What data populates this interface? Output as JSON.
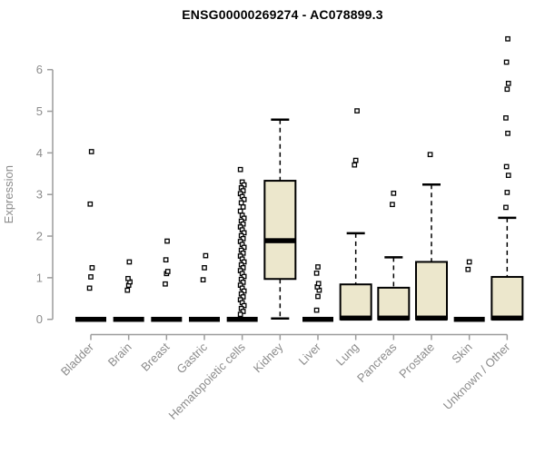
{
  "colors": {
    "box_fill": "#ece7cc",
    "box_stroke": "#000000",
    "median": "#000000",
    "whisker": "#000000",
    "outlier_fill": "#ffffff",
    "outlier_stroke": "#000000",
    "axis_line": "#9c9c9c",
    "axis_text": "#8c8c8c",
    "title_text": "#000000",
    "background": "#ffffff"
  },
  "chart_data": {
    "type": "boxplot",
    "title": "ENSG00000269274 - AC078899.3",
    "xlabel": "",
    "ylabel": "Expression",
    "ylim": [
      0,
      6.9
    ],
    "yticks": [
      0,
      1,
      2,
      3,
      4,
      5,
      6
    ],
    "grid": false,
    "legend": false,
    "categories": [
      "Bladder",
      "Brain",
      "Breast",
      "Gastric",
      "Hematopoietic cells",
      "Kidney",
      "Liver",
      "Lung",
      "Pancreas",
      "Prostate",
      "Skin",
      "Unknown / Other"
    ],
    "series": [
      {
        "category": "Bladder",
        "q1": 0,
        "median": 0,
        "q3": 0,
        "whisker_low": 0,
        "whisker_high": 0,
        "outliers": [
          0.75,
          1.02,
          1.24,
          2.77,
          4.03
        ]
      },
      {
        "category": "Brain",
        "q1": 0,
        "median": 0,
        "q3": 0,
        "whisker_low": 0,
        "whisker_high": 0,
        "outliers": [
          0.7,
          0.82,
          0.9,
          0.98,
          1.38
        ]
      },
      {
        "category": "Breast",
        "q1": 0,
        "median": 0,
        "q3": 0,
        "whisker_low": 0,
        "whisker_high": 0,
        "outliers": [
          0.85,
          1.1,
          1.15,
          1.43,
          1.88
        ]
      },
      {
        "category": "Gastric",
        "q1": 0,
        "median": 0,
        "q3": 0,
        "whisker_low": 0,
        "whisker_high": 0,
        "outliers": [
          0.95,
          1.24,
          1.53
        ]
      },
      {
        "category": "Hematopoietic cells",
        "q1": 0,
        "median": 0,
        "q3": 0,
        "whisker_low": 0,
        "whisker_high": 0,
        "outliers": [
          3.6,
          3.3,
          3.23,
          3.16,
          3.09,
          3.02,
          2.95,
          2.88,
          2.8,
          2.7,
          2.6,
          2.5,
          2.43,
          2.36,
          2.29,
          2.22,
          2.15,
          2.08,
          2.01,
          1.94,
          1.87,
          1.8,
          1.73,
          1.66,
          1.59,
          1.52,
          1.45,
          1.38,
          1.31,
          1.24,
          1.17,
          1.1,
          1.03,
          0.96,
          0.89,
          0.82,
          0.75,
          0.68,
          0.61,
          0.54,
          0.47,
          0.4,
          0.33,
          0.26,
          0.19,
          0.12
        ]
      },
      {
        "category": "Kidney",
        "q1": 0.97,
        "median": 1.89,
        "q3": 3.33,
        "whisker_low": 0.02,
        "whisker_high": 4.8,
        "outliers": []
      },
      {
        "category": "Liver",
        "q1": 0,
        "median": 0,
        "q3": 0,
        "whisker_low": 0,
        "whisker_high": 0,
        "outliers": [
          0.22,
          0.55,
          0.7,
          0.78,
          0.86,
          1.11,
          1.26
        ]
      },
      {
        "category": "Lung",
        "q1": 0,
        "median": 0.03,
        "q3": 0.84,
        "whisker_low": 0,
        "whisker_high": 2.07,
        "outliers": [
          3.71,
          3.82,
          5.01
        ]
      },
      {
        "category": "Pancreas",
        "q1": 0,
        "median": 0.03,
        "q3": 0.76,
        "whisker_low": 0,
        "whisker_high": 1.49,
        "outliers": [
          2.76,
          3.03
        ]
      },
      {
        "category": "Prostate",
        "q1": 0,
        "median": 0.03,
        "q3": 1.38,
        "whisker_low": 0,
        "whisker_high": 3.24,
        "outliers": [
          3.96
        ]
      },
      {
        "category": "Skin",
        "q1": 0,
        "median": 0,
        "q3": 0,
        "whisker_low": 0,
        "whisker_high": 0,
        "outliers": [
          1.2,
          1.38
        ]
      },
      {
        "category": "Unknown / Other",
        "q1": 0,
        "median": 0.03,
        "q3": 1.02,
        "whisker_low": 0,
        "whisker_high": 2.44,
        "outliers": [
          2.69,
          3.05,
          3.46,
          3.67,
          4.47,
          4.84,
          5.53,
          5.67,
          6.18,
          6.74
        ]
      }
    ]
  }
}
